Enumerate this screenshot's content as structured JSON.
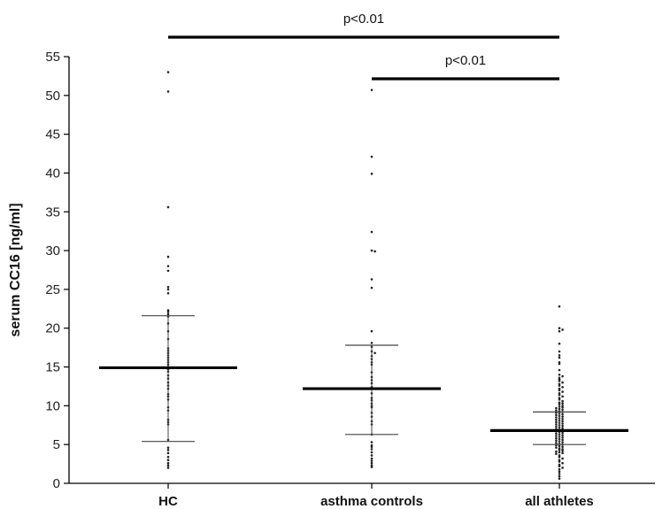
{
  "chart_data": {
    "type": "scatter",
    "ylabel": "serum CC16 [ng/ml]",
    "ylim": [
      0,
      55
    ],
    "yticks": [
      0,
      5,
      10,
      15,
      20,
      25,
      30,
      35,
      40,
      45,
      50,
      55
    ],
    "grid": false,
    "categories": [
      "HC",
      "asthma controls",
      "all athletes"
    ],
    "groups": [
      {
        "category": "HC",
        "mean": 14.9,
        "sd_upper": 21.6,
        "sd_lower": 5.4,
        "values": [
          53.0,
          50.5,
          35.6,
          29.2,
          28.0,
          27.4,
          25.3,
          25.0,
          24.5,
          22.3,
          22.1,
          21.8,
          21.5,
          20.6,
          19.6,
          18.6,
          17.4,
          17.1,
          16.8,
          16.5,
          16.2,
          15.9,
          15.6,
          15.3,
          15.0,
          14.7,
          14.4,
          13.9,
          13.5,
          13.0,
          12.6,
          12.2,
          11.5,
          11.2,
          10.8,
          9.8,
          9.4,
          8.2,
          7.9,
          7.6,
          5.6,
          4.6,
          4.3,
          3.9,
          3.4,
          3.0,
          2.6,
          2.3,
          2.0
        ]
      },
      {
        "category": "asthma controls",
        "mean": 12.2,
        "sd_upper": 17.8,
        "sd_lower": 6.3,
        "values": [
          50.7,
          42.1,
          39.9,
          32.4,
          30.0,
          29.9,
          26.3,
          25.2,
          19.6,
          18.1,
          17.6,
          17.0,
          16.8,
          16.4,
          16.0,
          15.6,
          15.3,
          14.3,
          13.7,
          13.3,
          12.9,
          12.4,
          11.6,
          11.0,
          10.7,
          10.3,
          10.0,
          9.8,
          9.1,
          8.6,
          8.0,
          7.6,
          6.3,
          5.3,
          4.9,
          4.7,
          4.4,
          4.0,
          3.6,
          3.2,
          2.9,
          2.6,
          2.3,
          2.1
        ]
      },
      {
        "category": "all athletes",
        "mean": 6.8,
        "sd_upper": 9.2,
        "sd_lower": 5.0,
        "values": [
          22.8,
          20.0,
          19.8,
          19.6,
          18.0,
          17.0,
          16.5,
          16.2,
          15.6,
          15.4,
          14.6,
          14.0,
          13.8,
          13.6,
          13.4,
          13.2,
          13.0,
          12.8,
          12.6,
          12.4,
          12.2,
          12.0,
          11.8,
          11.6,
          11.4,
          11.2,
          11.0,
          10.8,
          10.6,
          10.4,
          10.3,
          10.2,
          10.0,
          9.9,
          9.8,
          9.7,
          9.6,
          9.5,
          9.4,
          9.3,
          9.2,
          9.1,
          9.0,
          8.9,
          8.8,
          8.7,
          8.6,
          8.5,
          8.4,
          8.3,
          8.2,
          8.1,
          8.0,
          7.9,
          7.8,
          7.7,
          7.6,
          7.5,
          7.4,
          7.3,
          7.2,
          7.1,
          7.0,
          6.9,
          6.8,
          6.7,
          6.6,
          6.5,
          6.4,
          6.3,
          6.2,
          6.1,
          6.0,
          5.9,
          5.8,
          5.7,
          5.6,
          5.5,
          5.4,
          5.3,
          5.2,
          5.1,
          5.0,
          4.9,
          4.8,
          4.7,
          4.6,
          4.5,
          4.4,
          4.3,
          4.2,
          4.1,
          4.0,
          3.9,
          3.8,
          3.6,
          3.4,
          3.2,
          3.0,
          2.8,
          2.6,
          2.4,
          2.2,
          2.0,
          1.8,
          1.5,
          1.2,
          0.9,
          0.6
        ]
      }
    ],
    "significance": [
      {
        "from": "HC",
        "to": "all athletes",
        "label": "p<0.01"
      },
      {
        "from": "asthma controls",
        "to": "all athletes",
        "label": "p<0.01"
      }
    ]
  }
}
